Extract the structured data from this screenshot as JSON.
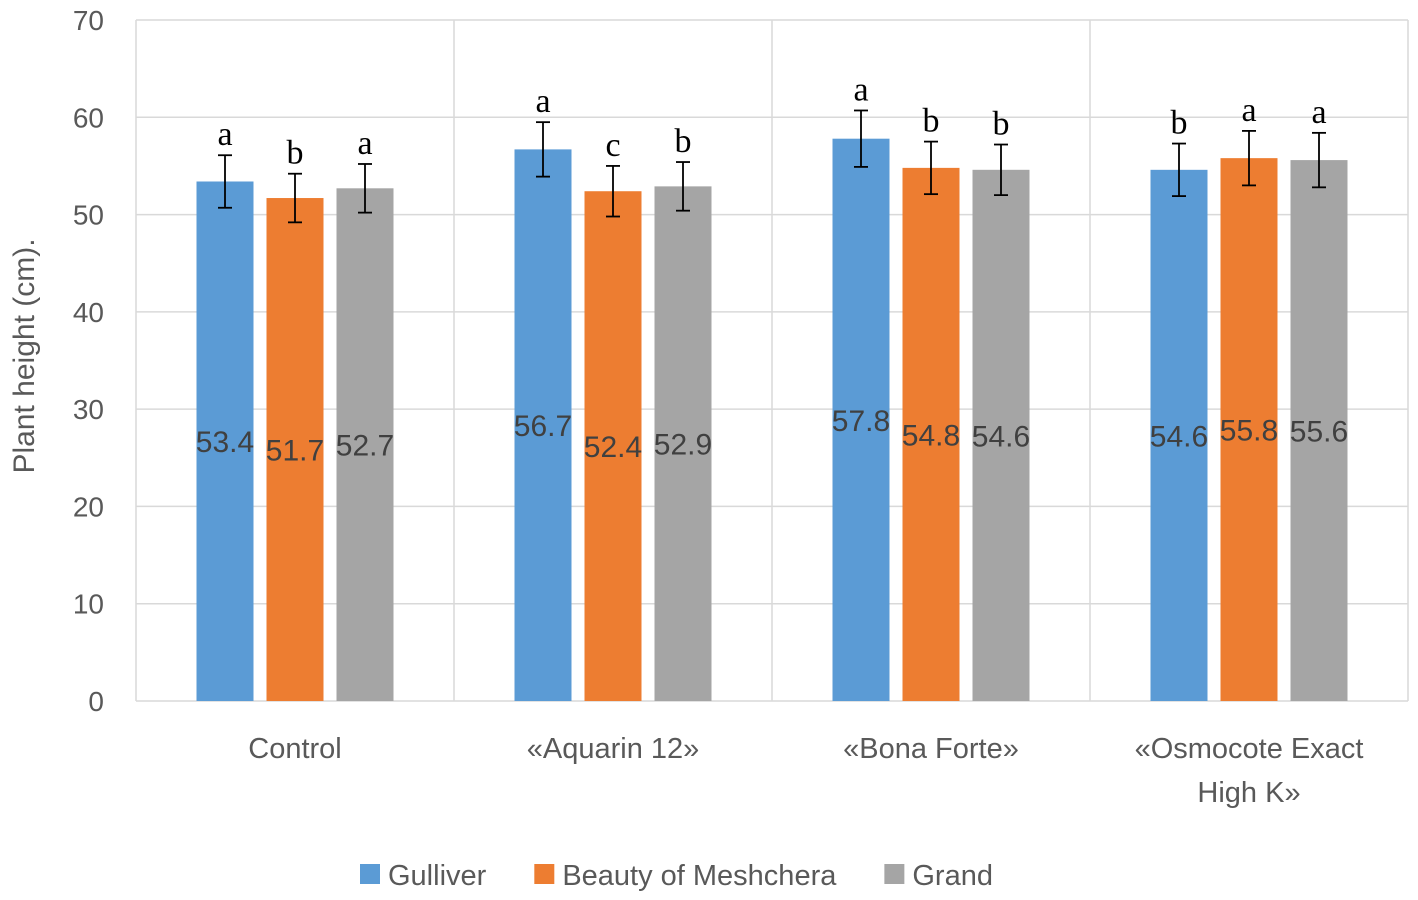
{
  "chart_data": {
    "type": "bar",
    "ylabel": "Plant height (cm).",
    "xlabel": "",
    "ylim": [
      0,
      70
    ],
    "yticks": [
      0,
      10,
      20,
      30,
      40,
      50,
      60,
      70
    ],
    "grid": true,
    "legend_position": "bottom",
    "categories": [
      [
        "Control"
      ],
      [
        "«Aquarin 12»"
      ],
      [
        "«Bona Forte»"
      ],
      [
        "«Osmocote Exact",
        "High K»"
      ]
    ],
    "series": [
      {
        "name": "Gulliver",
        "color": "#5b9bd5",
        "values": [
          53.4,
          56.7,
          57.8,
          54.6
        ],
        "errors": [
          2.7,
          2.8,
          2.9,
          2.7
        ],
        "letters": [
          "a",
          "a",
          "a",
          "b"
        ]
      },
      {
        "name": "Beauty of Meshchera",
        "color": "#ed7d31",
        "values": [
          51.7,
          52.4,
          54.8,
          55.8
        ],
        "errors": [
          2.5,
          2.6,
          2.7,
          2.8
        ],
        "letters": [
          "b",
          "c",
          "b",
          "a"
        ]
      },
      {
        "name": "Grand",
        "color": "#a5a5a5",
        "values": [
          52.7,
          52.9,
          54.6,
          55.6
        ],
        "errors": [
          2.5,
          2.5,
          2.6,
          2.8
        ],
        "letters": [
          "a",
          "b",
          "b",
          "a"
        ]
      }
    ]
  }
}
